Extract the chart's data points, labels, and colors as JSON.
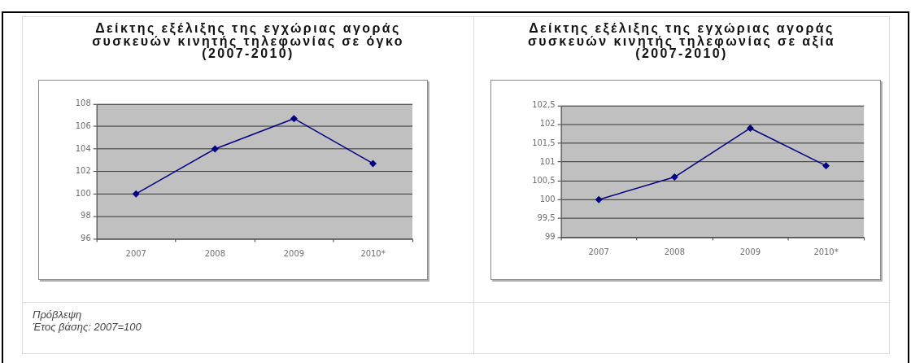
{
  "chart_data": [
    {
      "type": "line",
      "title": "Δείκτης εξέλιξης της εγχώριας αγοράς συσκευών κινητής τηλεφωνίας σε όγκο (2007-2010)",
      "categories": [
        "2007",
        "2008",
        "2009",
        "2010*"
      ],
      "series": [
        {
          "color": "#000080",
          "values": [
            100,
            104,
            106.7,
            102.7
          ]
        }
      ],
      "ylim": [
        96,
        108
      ],
      "yticks": [
        96,
        98,
        100,
        102,
        104,
        106,
        108
      ],
      "grid": "y",
      "marker": "diamond",
      "annotations": [
        "Πρόβλεψη",
        "Έτος βάσης: 2007=100"
      ]
    },
    {
      "type": "line",
      "title": "Δείκτης εξέλιξης της εγχώριας αγοράς συσκευών κινητής τηλεφωνίας σε αξία (2007-2010)",
      "categories": [
        "2007",
        "2008",
        "2009",
        "2010*"
      ],
      "series": [
        {
          "color": "#000080",
          "values": [
            100,
            100.6,
            101.9,
            100.9
          ]
        }
      ],
      "ylim": [
        99,
        102.5
      ],
      "yticks": [
        99,
        {
          "value": 99.5,
          "label": "99,5"
        },
        100,
        {
          "value": 100.5,
          "label": "100,5"
        },
        101,
        {
          "value": 101.5,
          "label": "101,5"
        },
        102,
        {
          "value": 102.5,
          "label": "102,5"
        }
      ],
      "grid": "y",
      "marker": "diamond"
    }
  ]
}
